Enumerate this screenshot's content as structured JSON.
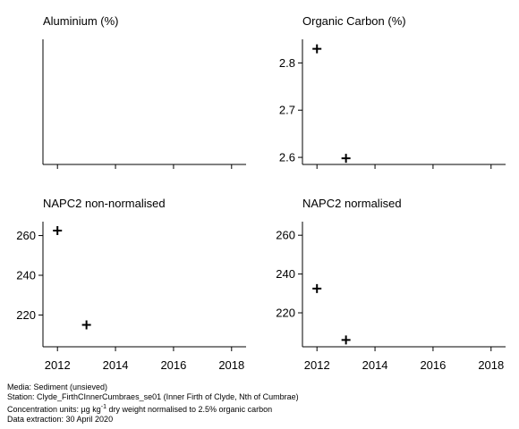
{
  "chart_data": [
    {
      "type": "scatter",
      "title": "Aluminium (%)",
      "x": [],
      "y": [],
      "xlim": [
        2011.5,
        2018.5
      ],
      "xticks": [
        2012,
        2014,
        2016,
        2018
      ],
      "show_xtick_labels": false,
      "yticks": [],
      "grid": false
    },
    {
      "type": "scatter",
      "title": "Organic Carbon (%)",
      "x": [
        2012,
        2013
      ],
      "y": [
        2.83,
        2.598
      ],
      "xlim": [
        2011.5,
        2018.5
      ],
      "ylim": [
        2.585,
        2.85
      ],
      "xticks": [
        2012,
        2014,
        2016,
        2018
      ],
      "show_xtick_labels": false,
      "yticks": [
        2.6,
        2.7,
        2.8
      ],
      "ytick_labels": [
        "2.6",
        "2.7",
        "2.8"
      ],
      "grid": false
    },
    {
      "type": "scatter",
      "title": "NAPC2 non-normalised",
      "x": [
        2012,
        2013
      ],
      "y": [
        262.5,
        215
      ],
      "xlim": [
        2011.5,
        2018.5
      ],
      "ylim": [
        204,
        267
      ],
      "xticks": [
        2012,
        2014,
        2016,
        2018
      ],
      "xtick_labels": [
        "2012",
        "2014",
        "2016",
        "2018"
      ],
      "show_xtick_labels": true,
      "yticks": [
        220,
        240,
        260
      ],
      "ytick_labels": [
        "220",
        "240",
        "260"
      ],
      "grid": false
    },
    {
      "type": "scatter",
      "title": "NAPC2 normalised",
      "x": [
        2012,
        2013
      ],
      "y": [
        232.5,
        206
      ],
      "xlim": [
        2011.5,
        2018.5
      ],
      "ylim": [
        202.5,
        267
      ],
      "xticks": [
        2012,
        2014,
        2016,
        2018
      ],
      "xtick_labels": [
        "2012",
        "2014",
        "2016",
        "2018"
      ],
      "show_xtick_labels": true,
      "yticks": [
        220,
        240,
        260
      ],
      "ytick_labels": [
        "220",
        "240",
        "260"
      ],
      "grid": false
    }
  ],
  "footer": {
    "media": "Media: Sediment (unsieved)",
    "station": "Station: Clyde_FirthCInnerCumbraes_se01 (Inner Firth of Clyde, Nth of Cumbrae)",
    "units_prefix": "Concentration units:  µg kg",
    "units_sup": "-1",
    "units_suffix": " dry weight normalised to 2.5% organic carbon",
    "extraction": "Data extraction: 30 April 2020"
  }
}
